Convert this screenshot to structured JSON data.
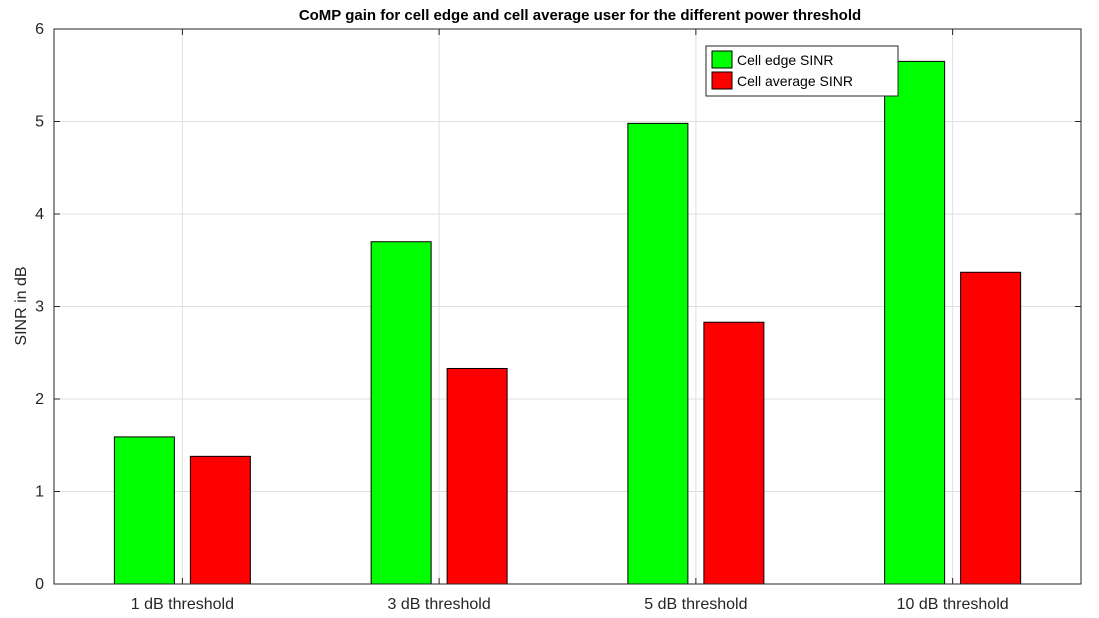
{
  "chart_data": {
    "type": "bar",
    "title": "CoMP gain for cell edge and cell average user for the different power threshold",
    "xlabel": "",
    "ylabel": "SINR in dB",
    "categories": [
      "1 dB threshold",
      "3 dB threshold",
      "5 dB threshold",
      "10 dB threshold"
    ],
    "series": [
      {
        "name": "Cell edge SINR",
        "color": "#00ff00",
        "values": [
          1.59,
          3.7,
          4.98,
          5.65
        ]
      },
      {
        "name": "Cell average SINR",
        "color": "#ff0000",
        "values": [
          1.38,
          2.33,
          2.83,
          3.37
        ]
      }
    ],
    "ylim": [
      0,
      6
    ],
    "yticks": [
      "0",
      "1",
      "2",
      "3",
      "4",
      "5",
      "6"
    ],
    "grid": true,
    "legend_position": "top-right"
  }
}
